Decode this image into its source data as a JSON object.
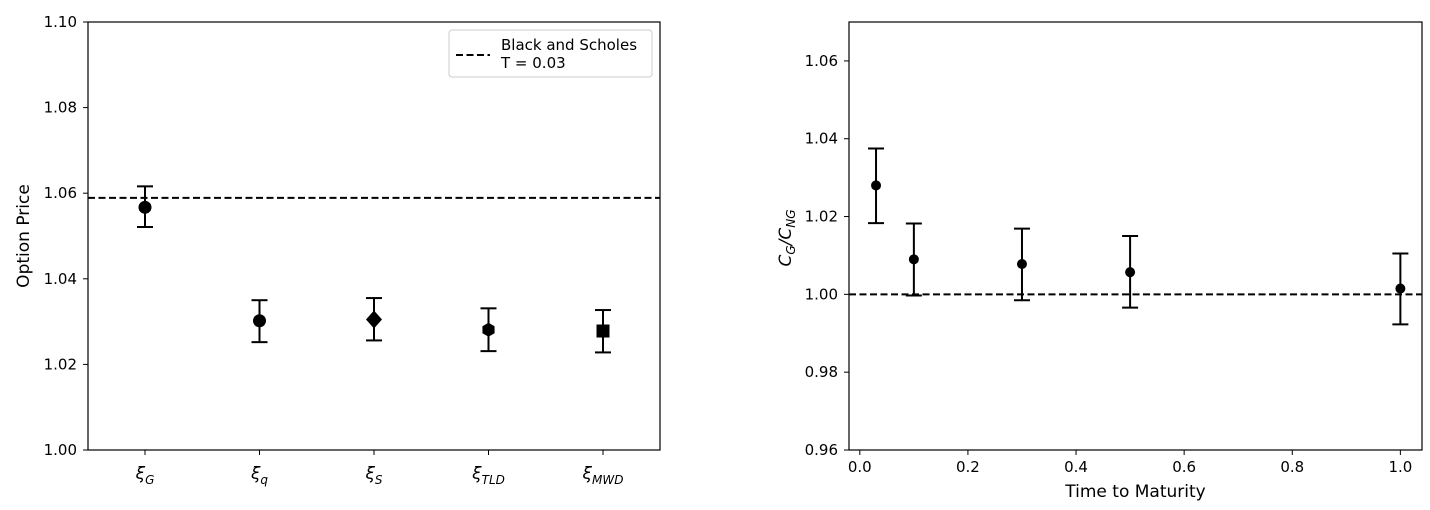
{
  "chart_data": [
    {
      "type": "scatter",
      "ylabel": "Option Price",
      "xlabel": "",
      "ylim": [
        1.0,
        1.1
      ],
      "yticks": [
        "1.00",
        "1.02",
        "1.04",
        "1.06",
        "1.08",
        "1.10"
      ],
      "categories": [
        {
          "symbol": "ξ",
          "subscript": "G"
        },
        {
          "symbol": "ξ",
          "subscript": "q"
        },
        {
          "symbol": "ξ",
          "subscript": "S"
        },
        {
          "symbol": "ξ",
          "subscript": "TLD"
        },
        {
          "symbol": "ξ",
          "subscript": "MWD"
        }
      ],
      "series": [
        {
          "markers": [
            "circle",
            "circle",
            "diamond",
            "hexagon",
            "square"
          ],
          "values": [
            1.0567,
            1.0302,
            1.0305,
            1.0281,
            1.0278
          ],
          "err_low": [
            1.0521,
            1.0252,
            1.0256,
            1.0231,
            1.0228
          ],
          "err_high": [
            1.0616,
            1.035,
            1.0355,
            1.0331,
            1.0327
          ]
        }
      ],
      "reference_line": {
        "value": 1.0589,
        "style": "dashed"
      },
      "legend": {
        "position": "top-right",
        "lines": [
          "Black and Scholes",
          "T = 0.03"
        ]
      }
    },
    {
      "type": "scatter",
      "xlabel": "Time to Maturity",
      "ylabel": {
        "main": "C",
        "sub_num": "G",
        "sep": "/",
        "main2": "C",
        "sub_den": "NG"
      },
      "xlim": [
        -0.02,
        1.04
      ],
      "ylim": [
        0.96,
        1.07
      ],
      "xticks": [
        0.0,
        0.2,
        0.4,
        0.6,
        0.8,
        1.0
      ],
      "xtick_labels": [
        "0.0",
        "0.2",
        "0.4",
        "0.6",
        "0.8",
        "1.0"
      ],
      "yticks": [
        0.96,
        0.98,
        1.0,
        1.02,
        1.04,
        1.06
      ],
      "ytick_labels": [
        "0.96",
        "0.98",
        "1.00",
        "1.02",
        "1.04",
        "1.06"
      ],
      "series": [
        {
          "x": [
            0.03,
            0.1,
            0.3,
            0.5,
            1.0
          ],
          "y": [
            1.028,
            1.009,
            1.0078,
            1.0057,
            1.0015
          ],
          "err_low": [
            1.0183,
            0.9997,
            0.9985,
            0.9966,
            0.9923
          ],
          "err_high": [
            1.0375,
            1.0182,
            1.0169,
            1.015,
            1.0105
          ]
        }
      ],
      "reference_line": {
        "value": 1.0,
        "style": "dashed"
      }
    }
  ]
}
